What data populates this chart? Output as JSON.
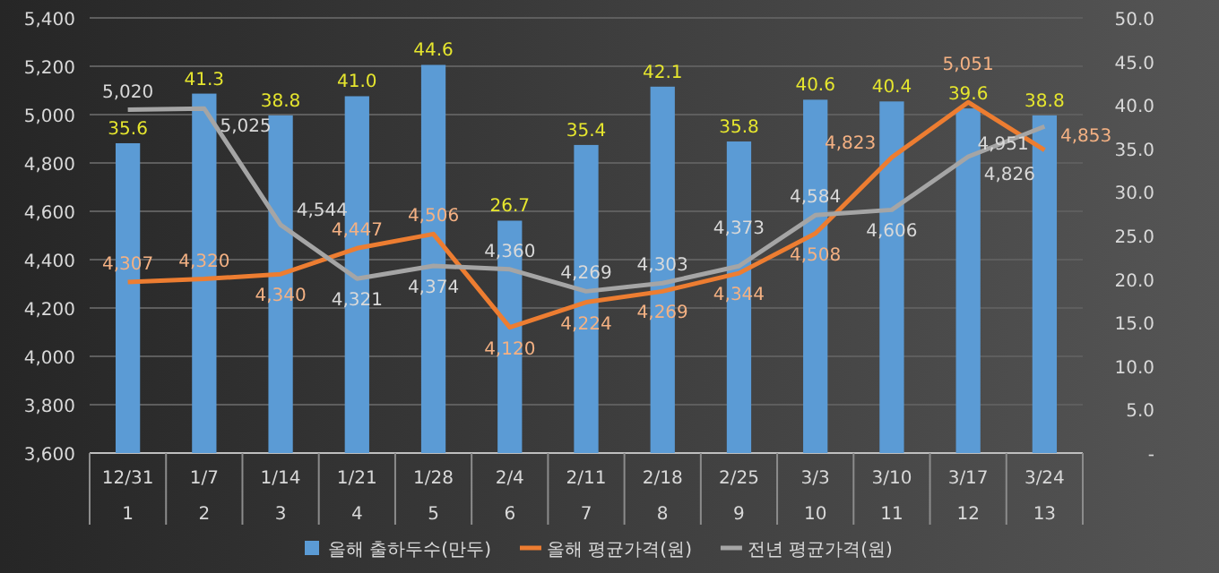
{
  "chart_data": {
    "type": "bar",
    "categories": [
      "12/31\n1",
      "1/7\n2",
      "1/14\n3",
      "1/21\n4",
      "1/28\n5",
      "2/4\n6",
      "2/11\n7",
      "2/18\n8",
      "2/25\n9",
      "3/3\n10",
      "3/10\n11",
      "3/17\n12",
      "3/24\n13"
    ],
    "series": [
      {
        "name": "올해 출하두수(만두)",
        "axis": "y2",
        "color": "#5b9bd5",
        "values": [
          35.6,
          41.3,
          38.8,
          41.0,
          44.6,
          26.7,
          35.4,
          42.1,
          35.8,
          40.6,
          40.4,
          39.6,
          38.8
        ],
        "value_labels": [
          "35.6",
          "41.3",
          "38.8",
          "41.0",
          "44.6",
          "26.7",
          "35.4",
          "42.1",
          "35.8",
          "40.6",
          "40.4",
          "39.6",
          "38.8"
        ]
      },
      {
        "name": "올해 평균가격(원)",
        "type": "line",
        "color": "#ed7d31",
        "values": [
          4307,
          4320,
          4340,
          4447,
          4506,
          4120,
          4224,
          4269,
          4344,
          4508,
          4823,
          5051,
          4853
        ],
        "value_labels": [
          "4,307",
          "4,320",
          "4,340",
          "4,447",
          "4,506",
          "4,120",
          "4,224",
          "4,269",
          "4,344",
          "4,508",
          "4,823",
          "5,051",
          "4,853"
        ]
      },
      {
        "name": "전년 평균가격(원)",
        "type": "line",
        "color": "#a5a5a5",
        "values": [
          5020,
          5025,
          4544,
          4321,
          4374,
          4360,
          4269,
          4303,
          4373,
          4584,
          4606,
          4826,
          4951
        ],
        "value_labels": [
          "5,020",
          "5,025",
          "4,544",
          "4,321",
          "4,374",
          "4,360",
          "4,269",
          "4,303",
          "4,373",
          "4,584",
          "4,606",
          "4,826",
          "4,951"
        ]
      }
    ],
    "ylim": [
      3600,
      5400
    ],
    "yticks": [
      {
        "value": 3600,
        "label": "3,600"
      },
      {
        "value": 3800,
        "label": "3,800"
      },
      {
        "value": 4000,
        "label": "4,000"
      },
      {
        "value": 4200,
        "label": "4,200"
      },
      {
        "value": 4400,
        "label": "4,400"
      },
      {
        "value": 4600,
        "label": "4,600"
      },
      {
        "value": 4800,
        "label": "4,800"
      },
      {
        "value": 5000,
        "label": "5,000"
      },
      {
        "value": 5200,
        "label": "5,200"
      },
      {
        "value": 5400,
        "label": "5,400"
      }
    ],
    "y2lim": [
      0,
      50
    ],
    "y2ticks": [
      {
        "value": 0,
        "label": "-"
      },
      {
        "value": 5,
        "label": "5.0"
      },
      {
        "value": 10,
        "label": "10.0"
      },
      {
        "value": 15,
        "label": "15.0"
      },
      {
        "value": 20,
        "label": "20.0"
      },
      {
        "value": 25,
        "label": "25.0"
      },
      {
        "value": 30,
        "label": "30.0"
      },
      {
        "value": 35,
        "label": "35.0"
      },
      {
        "value": 40,
        "label": "40.0"
      },
      {
        "value": 45,
        "label": "45.0"
      },
      {
        "value": 50,
        "label": "50.0"
      }
    ],
    "grid": "y",
    "legend": "bottom",
    "marker": "none",
    "line_style": "solid"
  }
}
